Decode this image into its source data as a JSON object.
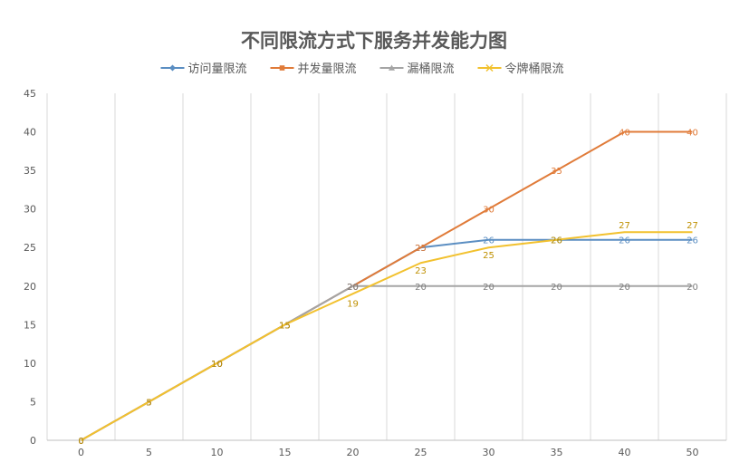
{
  "chart_data": {
    "type": "line",
    "title": "不同限流方式下服务并发能力图",
    "xlabel": "",
    "ylabel": "",
    "categories": [
      "0",
      "5",
      "10",
      "15",
      "20",
      "25",
      "30",
      "35",
      "40",
      "50"
    ],
    "ylim": [
      0,
      45
    ],
    "yticks": [
      0,
      5,
      10,
      15,
      20,
      25,
      30,
      35,
      40,
      45
    ],
    "grid": "vertical",
    "legend": "top",
    "data_labels": true,
    "series": [
      {
        "name": "访问量限流",
        "color": "#5B8EC2",
        "marker": "diamond",
        "values": [
          0,
          5,
          10,
          15,
          20,
          25,
          26,
          26,
          26,
          26
        ]
      },
      {
        "name": "并发量限流",
        "color": "#E07B39",
        "marker": "square",
        "values": [
          0,
          5,
          10,
          15,
          20,
          25,
          30,
          35,
          40,
          40
        ]
      },
      {
        "name": "漏桶限流",
        "color": "#A5A5A5",
        "marker": "triangle",
        "values": [
          0,
          5,
          10,
          15,
          20,
          20,
          20,
          20,
          20,
          20
        ]
      },
      {
        "name": "令牌桶限流",
        "color": "#F2C12E",
        "marker": "x",
        "values": [
          0,
          5,
          10,
          15,
          19,
          23,
          25,
          26,
          27,
          27
        ]
      }
    ]
  }
}
